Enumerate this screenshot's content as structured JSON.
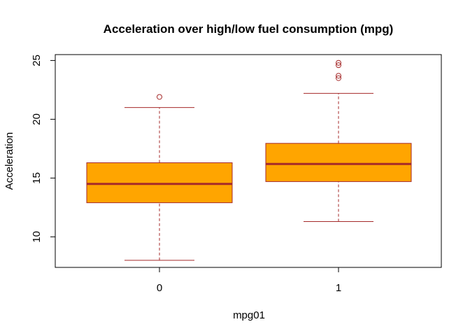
{
  "chart_data": {
    "type": "boxplot",
    "title": "Acceleration over high/low fuel consumption (mpg)",
    "xlabel": "mpg01",
    "ylabel": "Acceleration",
    "categories": [
      "0",
      "1"
    ],
    "y_ticks": [
      "10",
      "15",
      "20",
      "25"
    ],
    "ylim": [
      7.4,
      25.5
    ],
    "boxes": [
      {
        "category": "0",
        "whisker_low": 8.0,
        "q1": 12.9,
        "median": 14.5,
        "q3": 16.3,
        "whisker_high": 21.0,
        "outliers": [
          21.9
        ]
      },
      {
        "category": "1",
        "whisker_low": 11.3,
        "q1": 14.7,
        "median": 16.2,
        "q3": 17.95,
        "whisker_high": 22.2,
        "outliers": [
          24.6,
          24.8,
          23.5,
          23.7
        ]
      }
    ],
    "colors": {
      "box_fill": "#FFA500",
      "border": "#A52A2A"
    }
  }
}
